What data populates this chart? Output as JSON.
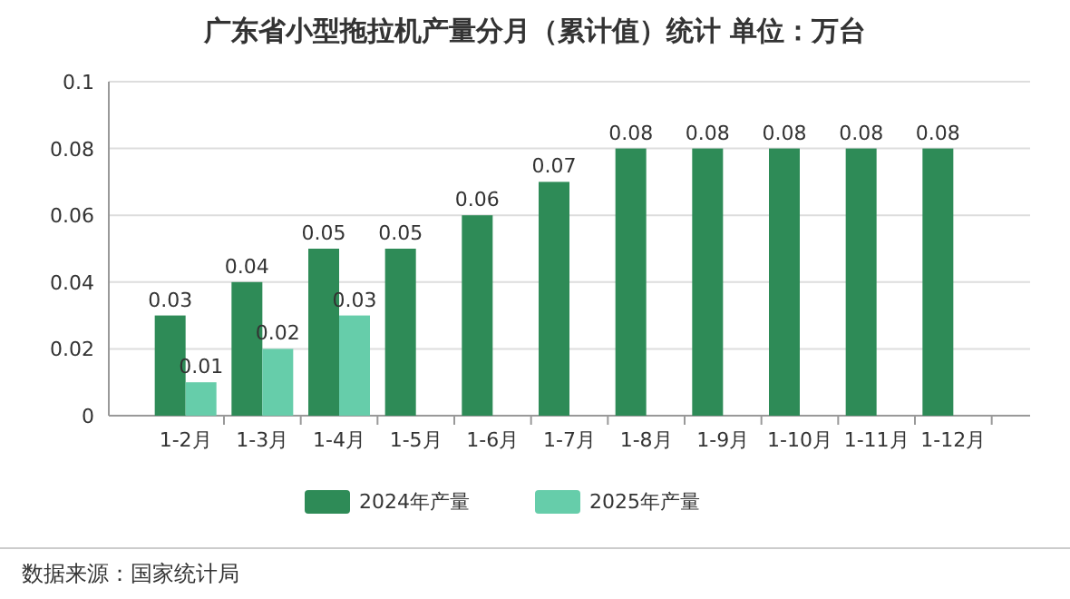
{
  "chart_data": {
    "type": "bar",
    "title": "广东省小型拖拉机产量分月（累计值）统计  单位：万台",
    "categories": [
      "1-2月",
      "1-3月",
      "1-4月",
      "1-5月",
      "1-6月",
      "1-7月",
      "1-8月",
      "1-9月",
      "1-10月",
      "1-11月",
      "1-12月"
    ],
    "series": [
      {
        "name": "2024年产量",
        "color": "#2e8b57",
        "values": [
          0.03,
          0.04,
          0.05,
          0.05,
          0.06,
          0.07,
          0.08,
          0.08,
          0.08,
          0.08,
          0.08
        ]
      },
      {
        "name": "2025年产量",
        "color": "#66cdaa",
        "values": [
          0.01,
          0.02,
          0.03,
          null,
          null,
          null,
          null,
          null,
          null,
          null,
          null
        ]
      }
    ],
    "ylim": [
      0,
      0.1
    ],
    "yticks": [
      0,
      0.02,
      0.04,
      0.06,
      0.08,
      0.1
    ],
    "grid": "y",
    "legend": "bottom",
    "data_labels": true,
    "annotations": [
      "数据来源：国家统计局"
    ]
  }
}
